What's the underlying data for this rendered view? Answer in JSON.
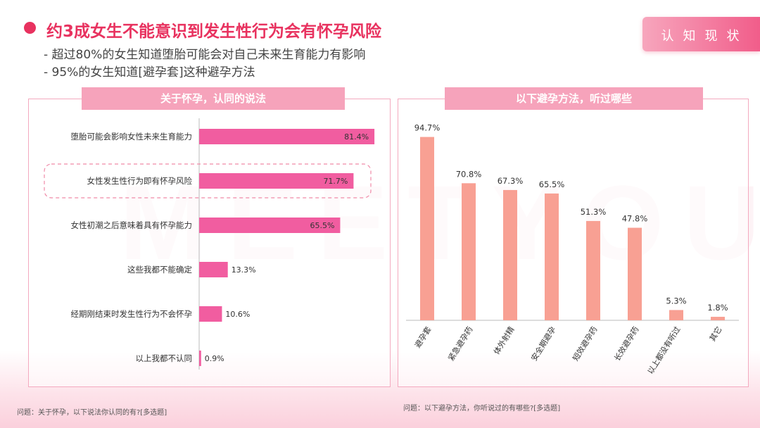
{
  "title": "约3成女生不能意识到发生性行为会有怀孕风险",
  "bullets": [
    "- 超过80%的女生知道堕胎可能会对自己未来生育能力有影响",
    "- 95%的女生知道[避孕套]这种避孕方法"
  ],
  "tag": "认知现状",
  "watermark": "MEETYOU",
  "colors": {
    "accent": "#e8325f",
    "left_bar": "#f15da0",
    "right_bar": "#f8a093",
    "panel_border": "#f4a9bf",
    "header": "#f6a3bb"
  },
  "left_panel": {
    "heading": "关于怀孕，认同的说法",
    "note": "问题：关于怀孕，以下说法你认同的有?[多选题]"
  },
  "right_panel": {
    "heading": "以下避孕方法，听过哪些",
    "note": "问题：以下避孕方法，你听说过的有哪些?[多选题]"
  },
  "chart_data": [
    {
      "type": "bar",
      "orientation": "horizontal",
      "title": "关于怀孕，认同的说法",
      "categories": [
        "堕胎可能会影响女性未来生育能力",
        "女性发生性行为即有怀孕风险",
        "女性初潮之后意味着具有怀孕能力",
        "这些我都不能确定",
        "经期刚结束时发生性行为不会怀孕",
        "以上我都不认同"
      ],
      "values": [
        81.4,
        71.7,
        65.5,
        13.3,
        10.6,
        0.9
      ],
      "labels": [
        "81.4%",
        "71.7%",
        "65.5%",
        "13.3%",
        "10.6%",
        "0.9%"
      ],
      "highlighted_category": "女性发生性行为即有怀孕风险",
      "ylim": [
        0,
        100
      ]
    },
    {
      "type": "bar",
      "orientation": "vertical",
      "title": "以下避孕方法，听过哪些",
      "categories": [
        "避孕套",
        "紧急避孕药",
        "体外射精",
        "安全期避孕",
        "短效避孕药",
        "长效避孕药",
        "以上都没有听过",
        "其它"
      ],
      "values": [
        94.7,
        70.8,
        67.3,
        65.5,
        51.3,
        47.8,
        5.3,
        1.8
      ],
      "labels": [
        "94.7%",
        "70.8%",
        "67.3%",
        "65.5%",
        "51.3%",
        "47.8%",
        "5.3%",
        "1.8%"
      ],
      "ylim": [
        0,
        100
      ]
    }
  ]
}
